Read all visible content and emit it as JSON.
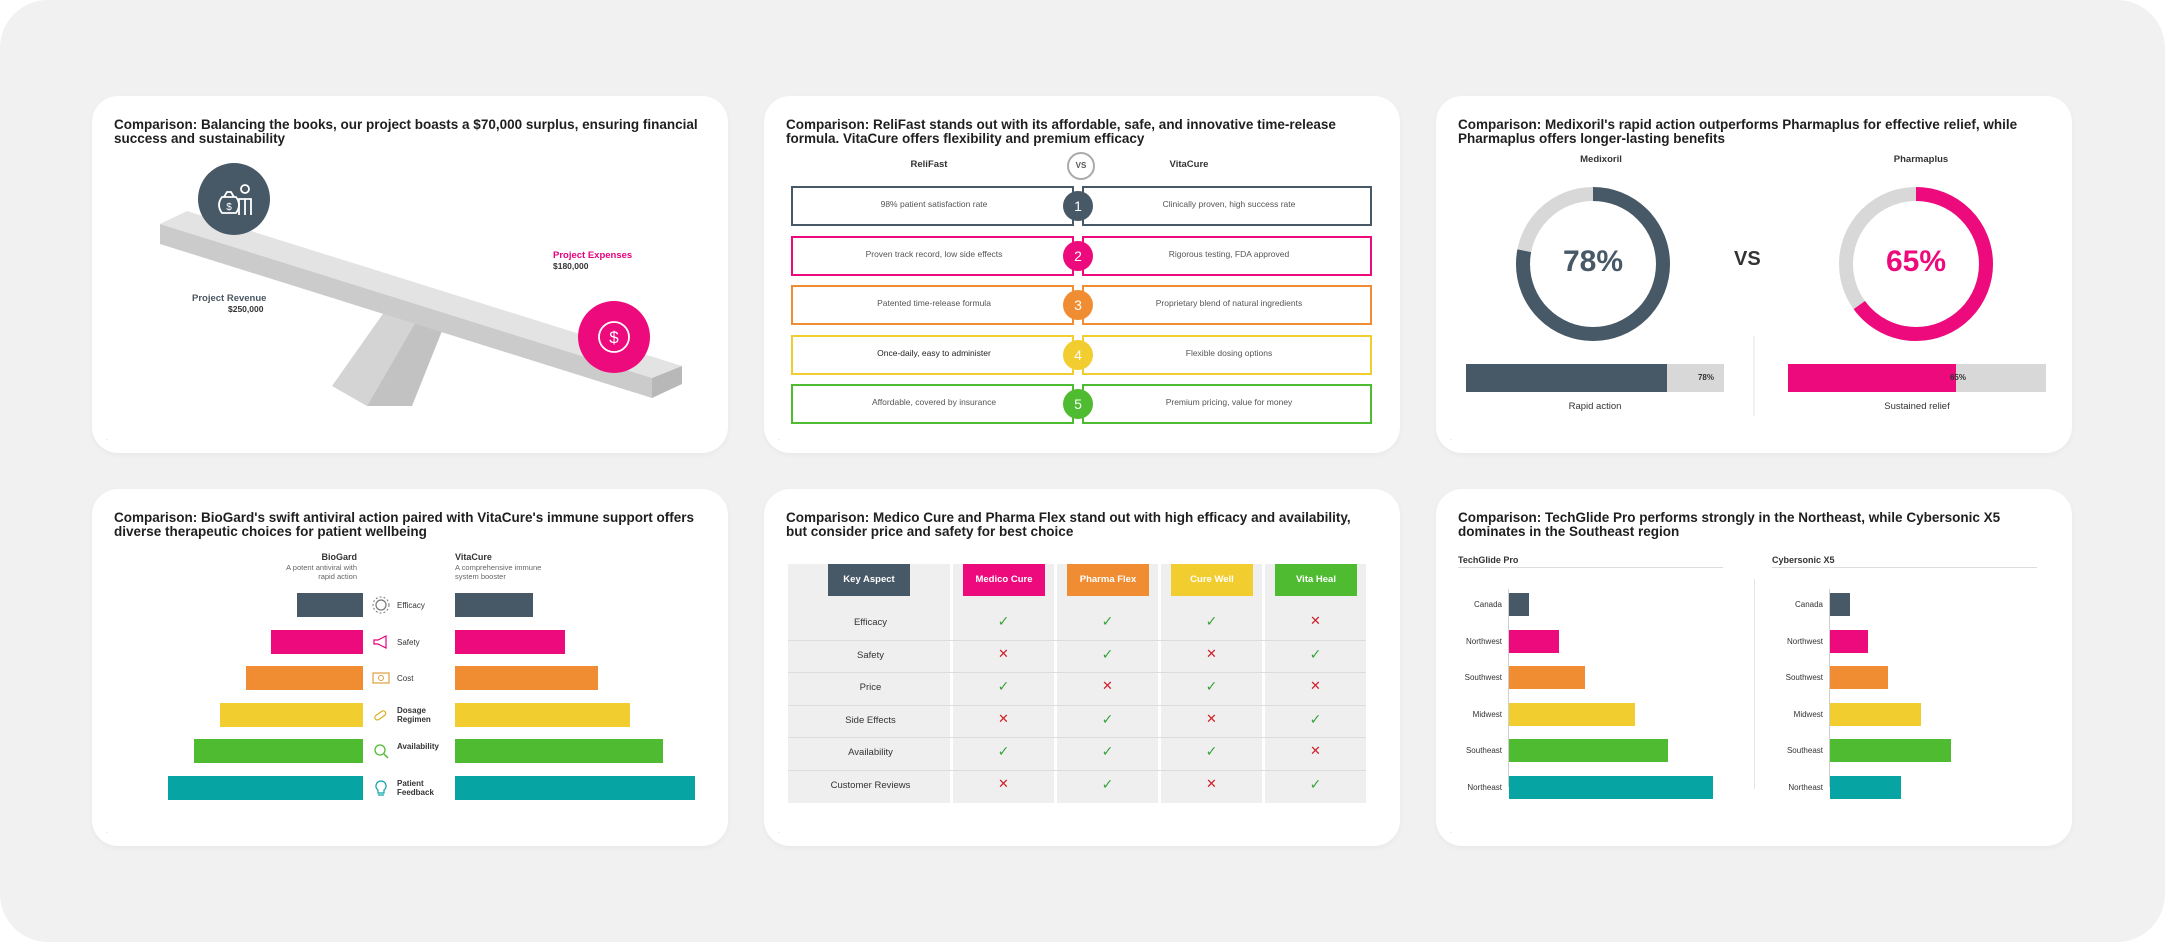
{
  "colors": {
    "slate": "#475866",
    "pink": "#ed0a7d",
    "orange": "#f08d33",
    "yellow": "#f2cd2f",
    "green": "#4ebb31",
    "teal": "#06a4a3",
    "gray": "#d8d8d8"
  },
  "slides": {
    "balance": {
      "title": "Comparison: Balancing the books, our project boasts a $70,000 surplus, ensuring financial success and sustainability",
      "revenue_label": "Project Revenue",
      "revenue_value": "$250,000",
      "expense_label": "Project Expenses",
      "expense_value": "$180,000",
      "left_icon": "money-bag-person-icon",
      "right_icon": "dollar-coin-icon"
    },
    "relifast": {
      "title": "Comparison: ReliFast stands out with its affordable, safe, and innovative time-release formula. VitaCure offers flexibility and premium efficacy",
      "left_head": "ReliFast",
      "vs": "VS",
      "right_head": "VitaCure",
      "rows": [
        {
          "num": "1",
          "left": "98% patient satisfaction rate",
          "right": "Clinically proven, high success rate"
        },
        {
          "num": "2",
          "left": "Proven track record, low side effects",
          "right": "Rigorous testing, FDA approved"
        },
        {
          "num": "3",
          "left": "Patented time-release formula",
          "right": "Proprietary blend of natural ingredients"
        },
        {
          "num": "4",
          "left": "Once-daily, easy to administer",
          "right": "Flexible dosing options"
        },
        {
          "num": "5",
          "left": "Affordable, covered by insurance",
          "right": "Premium pricing, value for money"
        }
      ]
    },
    "medixoril": {
      "title": "Comparison: Medixoril's rapid action outperforms Pharmaplus for effective relief, while Pharmaplus offers longer-lasting benefits",
      "vs": "VS",
      "left": {
        "name": "Medixoril",
        "pct_text": "78%",
        "pct": 78,
        "bar_label": "78%",
        "caption": "Rapid action"
      },
      "right": {
        "name": "Pharmaplus",
        "pct_text": "65%",
        "pct": 65,
        "bar_label": "65%",
        "caption": "Sustained relief"
      }
    },
    "biogard": {
      "title": "Comparison: BioGard's swift antiviral action paired with VitaCure's immune support offers diverse therapeutic choices for patient wellbeing",
      "left_head": "BioGard",
      "left_sub": "A potent antiviral with rapid action",
      "right_head": "VitaCure",
      "right_sub": "A comprehensive immune system booster",
      "rows": [
        {
          "label": "Efficacy",
          "icon": "gear-icon",
          "left": 1,
          "right": 1
        },
        {
          "label": "Safety",
          "icon": "megaphone-icon",
          "left": 2,
          "right": 2
        },
        {
          "label": "Cost",
          "icon": "cash-icon",
          "left": 3,
          "right": 3
        },
        {
          "label": "Dosage Regimen",
          "icon": "pills-icon",
          "left": 4,
          "right": 4
        },
        {
          "label": "Availability",
          "icon": "magnifier-icon",
          "left": 5,
          "right": 5
        },
        {
          "label": "Patient Feedback",
          "icon": "lightbulb-icon",
          "left": 6,
          "right": 6
        }
      ]
    },
    "medico": {
      "title": "Comparison: Medico Cure and Pharma Flex stand out with high efficacy and availability, but consider price and safety for best choice",
      "key_head": "Key Aspect",
      "columns": [
        "Medico Cure",
        "Pharma Flex",
        "Cure Well",
        "Vita Heal"
      ],
      "rows": [
        {
          "label": "Efficacy",
          "values": [
            true,
            true,
            true,
            false
          ]
        },
        {
          "label": "Safety",
          "values": [
            false,
            true,
            false,
            true
          ]
        },
        {
          "label": "Price",
          "values": [
            true,
            false,
            true,
            false
          ]
        },
        {
          "label": "Side Effects",
          "values": [
            false,
            true,
            false,
            true
          ]
        },
        {
          "label": "Availability",
          "values": [
            true,
            true,
            true,
            false
          ]
        },
        {
          "label": "Customer Reviews",
          "values": [
            false,
            true,
            false,
            true
          ]
        }
      ]
    },
    "techglide": {
      "title": "Comparison: TechGlide Pro performs strongly in the Northeast, while Cybersonic X5 dominates in the Southeast region",
      "chart_data": [
        {
          "type": "bar",
          "title": "TechGlide Pro",
          "categories": [
            "Canada",
            "Northwest",
            "Southwest",
            "Midwest",
            "Southeast",
            "Northeast"
          ],
          "values": [
            8,
            20,
            30,
            50,
            63,
            81
          ]
        },
        {
          "type": "bar",
          "title": "Cybersonic X5",
          "categories": [
            "Canada",
            "Northwest",
            "Southwest",
            "Midwest",
            "Southeast",
            "Northeast"
          ],
          "values": [
            8,
            15,
            23,
            36,
            48,
            28
          ]
        }
      ]
    }
  }
}
